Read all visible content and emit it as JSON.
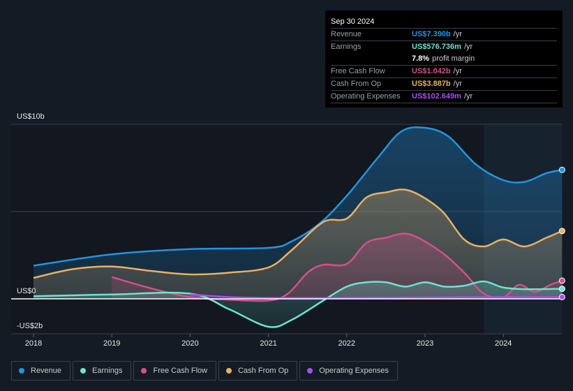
{
  "tooltip": {
    "date": "Sep 30 2024",
    "rows": [
      {
        "label": "Revenue",
        "value": "US$7.390b",
        "unit": "/yr",
        "color": "#2394df"
      },
      {
        "label": "Earnings",
        "value": "US$576.736m",
        "unit": "/yr",
        "color": "#6ce4cf"
      },
      {
        "label": "",
        "value": "7.8%",
        "unit": "profit margin",
        "color": "#ffffff"
      },
      {
        "label": "Free Cash Flow",
        "value": "US$1.042b",
        "unit": "/yr",
        "color": "#d4508a"
      },
      {
        "label": "Cash From Op",
        "value": "US$3.887b",
        "unit": "/yr",
        "color": "#eab064"
      },
      {
        "label": "Operating Expenses",
        "value": "US$102.649m",
        "unit": "/yr",
        "color": "#a84ff0"
      }
    ]
  },
  "legend": [
    {
      "label": "Revenue",
      "color": "#2394df"
    },
    {
      "label": "Earnings",
      "color": "#6ce4cf"
    },
    {
      "label": "Free Cash Flow",
      "color": "#d4508a"
    },
    {
      "label": "Cash From Op",
      "color": "#eab064"
    },
    {
      "label": "Operating Expenses",
      "color": "#a84ff0"
    }
  ],
  "chart_data": {
    "type": "area",
    "title": "",
    "xlabel": "",
    "ylabel": "",
    "ylim": [
      -2,
      10
    ],
    "xlim": [
      2018,
      2024.75
    ],
    "y_ticks": [
      {
        "value": 10,
        "label": "US$10b"
      },
      {
        "value": 0,
        "label": "US$0"
      },
      {
        "value": -2,
        "label": "-US$2b"
      }
    ],
    "x_ticks": [
      "2018",
      "2019",
      "2020",
      "2021",
      "2022",
      "2023",
      "2024"
    ],
    "grid": true,
    "highlight_from": 2023.75,
    "legend_position": "bottom",
    "series": [
      {
        "name": "Revenue",
        "color": "#2394df",
        "points": [
          [
            2018,
            1.9
          ],
          [
            2019,
            2.55
          ],
          [
            2020,
            2.85
          ],
          [
            2021,
            2.92
          ],
          [
            2021.3,
            3.3
          ],
          [
            2021.65,
            4.3
          ],
          [
            2022,
            5.9
          ],
          [
            2022.4,
            8.1
          ],
          [
            2022.7,
            9.6
          ],
          [
            2023,
            9.8
          ],
          [
            2023.3,
            9.3
          ],
          [
            2023.65,
            7.7
          ],
          [
            2024,
            6.8
          ],
          [
            2024.27,
            6.7
          ],
          [
            2024.55,
            7.2
          ],
          [
            2024.75,
            7.39
          ]
        ]
      },
      {
        "name": "Cash From Op",
        "color": "#eab064",
        "points": [
          [
            2018,
            1.2
          ],
          [
            2018.5,
            1.7
          ],
          [
            2019,
            1.85
          ],
          [
            2019.5,
            1.6
          ],
          [
            2020,
            1.4
          ],
          [
            2020.5,
            1.5
          ],
          [
            2021,
            1.8
          ],
          [
            2021.3,
            2.8
          ],
          [
            2021.7,
            4.4
          ],
          [
            2022,
            4.6
          ],
          [
            2022.25,
            5.8
          ],
          [
            2022.5,
            6.1
          ],
          [
            2022.8,
            6.2
          ],
          [
            2023.2,
            5.1
          ],
          [
            2023.5,
            3.4
          ],
          [
            2023.75,
            3.0
          ],
          [
            2024,
            3.4
          ],
          [
            2024.27,
            3.0
          ],
          [
            2024.55,
            3.5
          ],
          [
            2024.75,
            3.887
          ]
        ]
      },
      {
        "name": "Free Cash Flow",
        "color": "#d4508a",
        "points": [
          [
            2019,
            1.25
          ],
          [
            2019.5,
            0.6
          ],
          [
            2020,
            0.1
          ],
          [
            2020.5,
            -0.05
          ],
          [
            2021,
            -0.1
          ],
          [
            2021.25,
            0.3
          ],
          [
            2021.5,
            1.5
          ],
          [
            2021.7,
            1.95
          ],
          [
            2022,
            2.0
          ],
          [
            2022.25,
            3.2
          ],
          [
            2022.5,
            3.5
          ],
          [
            2022.8,
            3.7
          ],
          [
            2023.2,
            2.7
          ],
          [
            2023.5,
            1.5
          ],
          [
            2023.75,
            0.3
          ],
          [
            2024,
            0.1
          ],
          [
            2024.2,
            0.8
          ],
          [
            2024.4,
            0.4
          ],
          [
            2024.6,
            0.8
          ],
          [
            2024.75,
            1.042
          ]
        ]
      },
      {
        "name": "Earnings",
        "color": "#6ce4cf",
        "points": [
          [
            2018,
            0.15
          ],
          [
            2019,
            0.25
          ],
          [
            2020,
            0.3
          ],
          [
            2020.5,
            -0.6
          ],
          [
            2021,
            -1.6
          ],
          [
            2021.3,
            -1.2
          ],
          [
            2021.7,
            -0.1
          ],
          [
            2022,
            0.7
          ],
          [
            2022.25,
            0.95
          ],
          [
            2022.5,
            0.95
          ],
          [
            2022.75,
            0.7
          ],
          [
            2023,
            0.95
          ],
          [
            2023.25,
            0.7
          ],
          [
            2023.5,
            0.75
          ],
          [
            2023.75,
            1.0
          ],
          [
            2024,
            0.65
          ],
          [
            2024.3,
            0.55
          ],
          [
            2024.75,
            0.577
          ]
        ]
      },
      {
        "name": "Operating Expenses",
        "color": "#a84ff0",
        "points": [
          [
            2020,
            0.25
          ],
          [
            2020.5,
            0.1
          ],
          [
            2021,
            0.05
          ],
          [
            2022,
            0.05
          ],
          [
            2023,
            0.08
          ],
          [
            2024,
            0.1
          ],
          [
            2024.75,
            0.103
          ]
        ]
      }
    ]
  }
}
